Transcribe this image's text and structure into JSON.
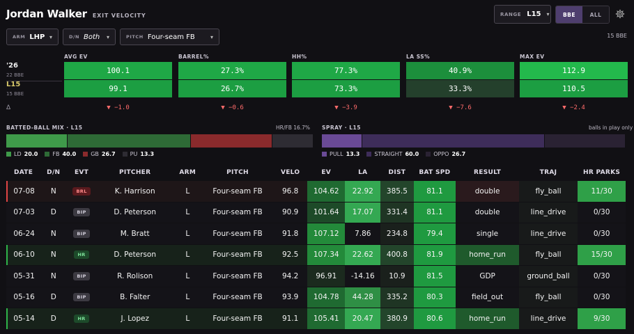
{
  "header": {
    "player": "Jordan Walker",
    "subtitle": "EXIT VELOCITY",
    "range_label": "RANGE",
    "range_value": "L15",
    "toggle_bbe": "BBE",
    "toggle_all": "ALL"
  },
  "filters": {
    "arm_label": "ARM",
    "arm_value": "LHP",
    "dn_label": "D/N",
    "dn_value": "Both",
    "pitch_label": "PITCH",
    "pitch_value": "Four-seam FB",
    "bbe_count": "15 BBE"
  },
  "rows": {
    "season_label": "'26",
    "season_bbe": "22 BBE",
    "recent_label": "L15",
    "recent_bbe": "15 BBE",
    "delta_symbol": "Δ"
  },
  "metrics": [
    {
      "name": "AVG EV",
      "season": "100.1",
      "recent": "99.1",
      "delta": "▼ −1.0"
    },
    {
      "name": "BARREL%",
      "season": "27.3%",
      "recent": "26.7%",
      "delta": "▼ −0.6"
    },
    {
      "name": "HH%",
      "season": "77.3%",
      "recent": "73.3%",
      "delta": "▼ −3.9"
    },
    {
      "name": "LA SS%",
      "season": "40.9%",
      "recent": "33.3%",
      "delta": "▼ −7.6"
    },
    {
      "name": "MAX EV",
      "season": "112.9",
      "recent": "110.5",
      "delta": "▼ −2.4"
    }
  ],
  "metric_colors": [
    [
      "#1fa846",
      "#1c9e42"
    ],
    [
      "#1fa846",
      "#1c9e42"
    ],
    [
      "#1fa846",
      "#1c9e42"
    ],
    [
      "#1c8f3c",
      "#24402c"
    ],
    [
      "#23b94c",
      "#1c9e42"
    ]
  ],
  "mix": {
    "title": "BATTED-BALL MIX · L15",
    "hrfb": "HR/FB 16.7%",
    "segments": [
      {
        "key": "LD",
        "value": 20.0,
        "display": "20.0",
        "color": "#3f9a4a"
      },
      {
        "key": "FB",
        "value": 40.0,
        "display": "40.0",
        "color": "#2e6a36"
      },
      {
        "key": "GB",
        "value": 26.7,
        "display": "26.7",
        "color": "#8a2a2c"
      },
      {
        "key": "PU",
        "value": 13.3,
        "display": "13.3",
        "color": "#2e2c33"
      }
    ]
  },
  "spray": {
    "title": "SPRAY · L15",
    "note": "balls in play only",
    "segments": [
      {
        "key": "PULL",
        "value": 13.3,
        "display": "13.3",
        "color": "#6a4a96"
      },
      {
        "key": "STRAIGHT",
        "value": 60.0,
        "display": "60.0",
        "color": "#3e2d5a"
      },
      {
        "key": "OPPO",
        "value": 26.7,
        "display": "26.7",
        "color": "#2a2233"
      }
    ]
  },
  "table": {
    "columns": [
      "DATE",
      "D/N",
      "EVT",
      "PITCHER",
      "ARM",
      "PITCH",
      "VELO",
      "EV",
      "LA",
      "DIST",
      "BAT SPD",
      "RESULT",
      "TRAJ",
      "HR PARKS"
    ],
    "rows": [
      {
        "date": "07-08",
        "dn": "N",
        "evt": "BRL",
        "pitcher": "K. Harrison",
        "arm": "L",
        "pitch": "Four-seam FB",
        "velo": "96.8",
        "ev": "104.62",
        "la": "22.92",
        "dist": "385.5",
        "bat": "81.1",
        "result": "double",
        "traj": "fly_ball",
        "parks": "11/30"
      },
      {
        "date": "07-03",
        "dn": "D",
        "evt": "BIP",
        "pitcher": "D. Peterson",
        "arm": "L",
        "pitch": "Four-seam FB",
        "velo": "90.9",
        "ev": "101.64",
        "la": "17.07",
        "dist": "331.4",
        "bat": "81.1",
        "result": "double",
        "traj": "line_drive",
        "parks": "0/30"
      },
      {
        "date": "06-24",
        "dn": "N",
        "evt": "BIP",
        "pitcher": "M. Bratt",
        "arm": "L",
        "pitch": "Four-seam FB",
        "velo": "91.8",
        "ev": "107.12",
        "la": "7.86",
        "dist": "234.8",
        "bat": "79.4",
        "result": "single",
        "traj": "line_drive",
        "parks": "0/30"
      },
      {
        "date": "06-10",
        "dn": "N",
        "evt": "HR",
        "pitcher": "D. Peterson",
        "arm": "L",
        "pitch": "Four-seam FB",
        "velo": "92.5",
        "ev": "107.34",
        "la": "22.62",
        "dist": "400.8",
        "bat": "81.9",
        "result": "home_run",
        "traj": "fly_ball",
        "parks": "15/30"
      },
      {
        "date": "05-31",
        "dn": "N",
        "evt": "BIP",
        "pitcher": "R. Rolison",
        "arm": "L",
        "pitch": "Four-seam FB",
        "velo": "94.2",
        "ev": "96.91",
        "la": "-14.16",
        "dist": "10.9",
        "bat": "81.5",
        "result": "GDP",
        "traj": "ground_ball",
        "parks": "0/30"
      },
      {
        "date": "05-16",
        "dn": "D",
        "evt": "BIP",
        "pitcher": "B. Falter",
        "arm": "L",
        "pitch": "Four-seam FB",
        "velo": "93.9",
        "ev": "104.78",
        "la": "44.28",
        "dist": "335.2",
        "bat": "80.3",
        "result": "field_out",
        "traj": "fly_ball",
        "parks": "0/30"
      },
      {
        "date": "05-14",
        "dn": "D",
        "evt": "HR",
        "pitcher": "J. Lopez",
        "arm": "L",
        "pitch": "Four-seam FB",
        "velo": "91.1",
        "ev": "105.41",
        "la": "20.47",
        "dist": "380.9",
        "bat": "80.6",
        "result": "home_run",
        "traj": "line_drive",
        "parks": "9/30"
      }
    ]
  }
}
